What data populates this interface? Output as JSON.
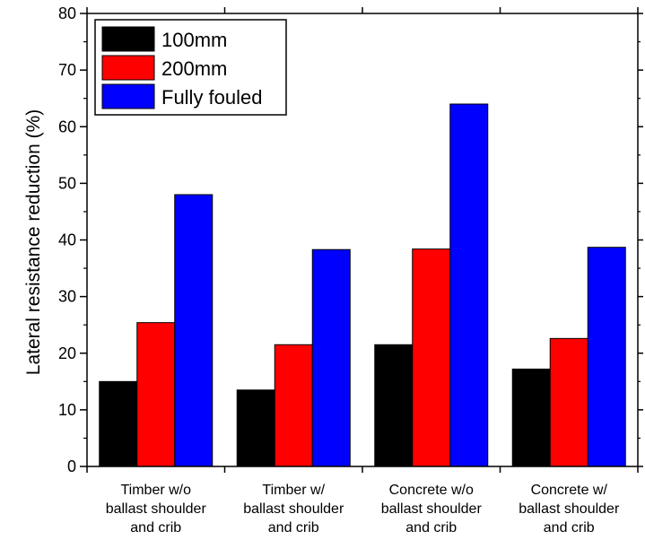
{
  "chart_data": {
    "type": "bar",
    "title": "",
    "xlabel": "",
    "ylabel": "Lateral resistance reduction (%)",
    "ylim": [
      0,
      80
    ],
    "yticks": [
      0,
      10,
      20,
      30,
      40,
      50,
      60,
      70,
      80
    ],
    "grid": false,
    "legend_position": "top-left",
    "categories": [
      [
        "Timber w/o",
        "ballast shoulder",
        "and crib"
      ],
      [
        "Timber w/",
        "ballast shoulder",
        "and crib"
      ],
      [
        "Concrete w/o",
        "ballast shoulder",
        "and crib"
      ],
      [
        "Concrete w/",
        "ballast shoulder",
        "and crib"
      ]
    ],
    "series": [
      {
        "name": "100mm",
        "color": "#000000",
        "values": [
          15.0,
          13.5,
          21.5,
          17.2
        ]
      },
      {
        "name": "200mm",
        "color": "#ff0000",
        "values": [
          25.4,
          21.5,
          38.4,
          22.6
        ]
      },
      {
        "name": "Fully fouled",
        "color": "#0000ff",
        "values": [
          48.0,
          38.3,
          64.0,
          38.7
        ]
      }
    ]
  }
}
